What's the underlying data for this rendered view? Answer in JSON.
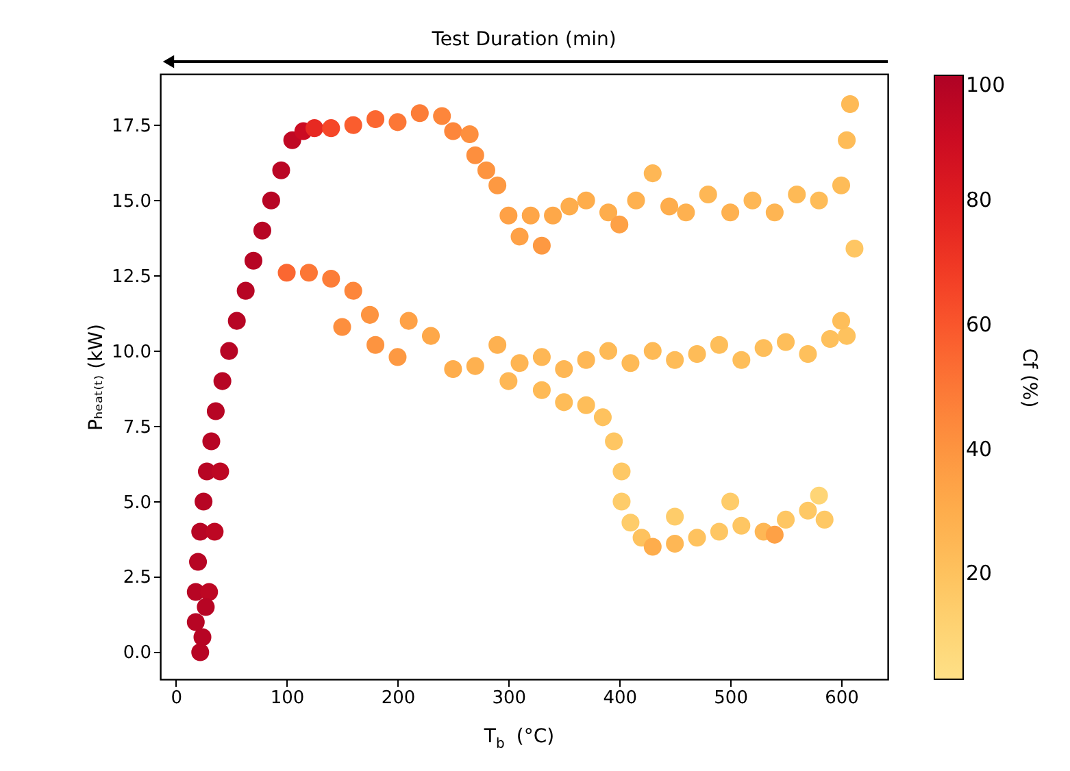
{
  "chart_data": {
    "type": "scatter",
    "xlabel": "T$_{b}$ (°C)",
    "ylabel": "Pₕₑₐₜ₍ₜ₎ (kW)",
    "clabel": "Cf (%)",
    "annotations": [
      "Test Duration (min)"
    ],
    "xlim": [
      -14,
      642
    ],
    "xticks": [
      0,
      100,
      200,
      300,
      400,
      500,
      600
    ],
    "ylim": [
      -0.9,
      19.2
    ],
    "yticks": [
      {
        "value": 0,
        "label": "0.0"
      },
      {
        "value": 2.5,
        "label": "2.5"
      },
      {
        "value": 5,
        "label": "5.0"
      },
      {
        "value": 7.5,
        "label": "7.5"
      },
      {
        "value": 10,
        "label": "10.0"
      },
      {
        "value": 12.5,
        "label": "12.5"
      },
      {
        "value": 15,
        "label": "15.0"
      },
      {
        "value": 17.5,
        "label": "17.5"
      }
    ],
    "clim": [
      3,
      100
    ],
    "cticks": [
      20,
      40,
      60,
      80,
      100
    ],
    "grid": false,
    "marker": "circle",
    "x": [
      22,
      18,
      18,
      20,
      22,
      25,
      28,
      32,
      36,
      42,
      48,
      55,
      63,
      70,
      78,
      86,
      95,
      105,
      115,
      30,
      35,
      40,
      24,
      27,
      125,
      140,
      160,
      180,
      200,
      220,
      240,
      250,
      265,
      270,
      280,
      290,
      300,
      310,
      320,
      330,
      340,
      355,
      370,
      390,
      400,
      415,
      430,
      445,
      460,
      480,
      500,
      520,
      540,
      560,
      580,
      600,
      605,
      608,
      612,
      100,
      120,
      140,
      160,
      175,
      150,
      180,
      200,
      210,
      230,
      250,
      270,
      290,
      310,
      330,
      350,
      370,
      390,
      410,
      430,
      450,
      470,
      490,
      510,
      530,
      550,
      570,
      590,
      605,
      600,
      300,
      330,
      350,
      370,
      385,
      395,
      402,
      402,
      410,
      420,
      430,
      450,
      470,
      490,
      510,
      530,
      550,
      570,
      580,
      585,
      500,
      450,
      540
    ],
    "values": [
      0,
      1,
      2,
      3,
      4,
      5,
      6,
      7,
      8,
      9,
      10,
      11,
      12,
      13,
      14,
      15,
      16,
      17,
      17.3,
      2,
      4,
      6,
      0.5,
      1.5,
      17.4,
      17.4,
      17.5,
      17.7,
      17.6,
      17.9,
      17.8,
      17.3,
      17.2,
      16.5,
      16.0,
      15.5,
      14.5,
      13.8,
      14.5,
      13.5,
      14.5,
      14.8,
      15.0,
      14.6,
      14.2,
      15.0,
      15.9,
      14.8,
      14.6,
      15.2,
      14.6,
      15.0,
      14.6,
      15.2,
      15.0,
      15.5,
      17.0,
      18.2,
      13.4,
      12.6,
      12.6,
      12.4,
      12.0,
      11.2,
      10.8,
      10.2,
      9.8,
      11.0,
      10.5,
      9.4,
      9.5,
      10.2,
      9.6,
      9.8,
      9.4,
      9.7,
      10.0,
      9.6,
      10.0,
      9.7,
      9.9,
      10.2,
      9.7,
      10.1,
      10.3,
      9.9,
      10.4,
      10.5,
      11.0,
      9.0,
      8.7,
      8.3,
      8.2,
      7.8,
      7.0,
      6.0,
      5.0,
      4.3,
      3.8,
      3.5,
      3.6,
      3.8,
      4.0,
      4.2,
      4.0,
      4.4,
      4.7,
      5.2,
      4.4,
      5.0,
      4.5,
      3.9
    ],
    "cvalues": [
      97,
      97,
      97,
      97,
      97,
      97,
      97,
      97,
      97,
      97,
      97,
      97,
      97,
      97,
      97,
      97,
      96,
      94,
      90,
      95,
      95,
      95,
      97,
      97,
      75,
      65,
      58,
      55,
      50,
      48,
      45,
      45,
      42,
      42,
      40,
      38,
      35,
      35,
      33,
      38,
      32,
      30,
      30,
      30,
      35,
      28,
      25,
      30,
      28,
      25,
      28,
      25,
      26,
      24,
      23,
      23,
      23,
      24,
      18,
      55,
      50,
      48,
      45,
      40,
      42,
      40,
      38,
      35,
      32,
      30,
      28,
      28,
      26,
      25,
      25,
      25,
      24,
      24,
      24,
      23,
      23,
      22,
      22,
      22,
      22,
      21,
      21,
      20,
      22,
      25,
      24,
      23,
      22,
      20,
      18,
      17,
      15,
      15,
      20,
      30,
      25,
      20,
      18,
      18,
      25,
      18,
      17,
      10,
      17,
      15,
      15,
      35
    ]
  }
}
